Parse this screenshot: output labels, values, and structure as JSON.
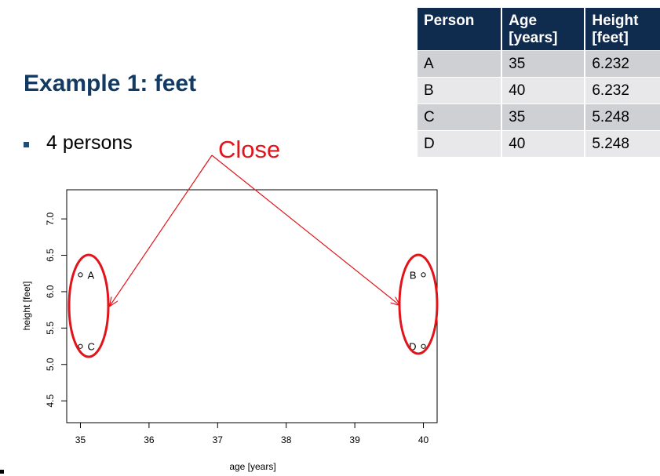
{
  "slide": {
    "title": "Example 1: feet",
    "bullet": "4 persons",
    "annotation": "Close"
  },
  "table": {
    "headers": [
      [
        "Person"
      ],
      [
        "Age",
        "[years]"
      ],
      [
        "Height",
        "[feet]"
      ]
    ],
    "rows": [
      [
        "A",
        "35",
        "6.232"
      ],
      [
        "B",
        "40",
        "6.232"
      ],
      [
        "C",
        "35",
        "5.248"
      ],
      [
        "D",
        "40",
        "5.248"
      ]
    ],
    "colors": {
      "header_bg": "#0f2b4d",
      "row_odd": "#cfd0d3",
      "row_even": "#e8e8ea"
    }
  },
  "chart_data": {
    "type": "scatter",
    "title": "",
    "xlabel": "age [years]",
    "ylabel": "height [feet]",
    "xlim": [
      34.8,
      40.2
    ],
    "ylim": [
      4.2,
      7.4
    ],
    "x_ticks": [
      35,
      36,
      37,
      38,
      39,
      40
    ],
    "x_tick_labels": [
      "35",
      "36",
      "37",
      "38",
      "39",
      "40"
    ],
    "y_ticks": [
      4.5,
      5.0,
      5.5,
      6.0,
      6.5,
      7.0
    ],
    "y_tick_labels": [
      "4.5",
      "5.0",
      "5.5",
      "6.0",
      "6.5",
      "7.0"
    ],
    "grid": false,
    "points": [
      {
        "label": "A",
        "x": 35,
        "y": 6.232
      },
      {
        "label": "B",
        "x": 40,
        "y": 6.232
      },
      {
        "label": "C",
        "x": 35,
        "y": 5.248
      },
      {
        "label": "D",
        "x": 40,
        "y": 5.248
      }
    ],
    "annotation_color": "#e2141b"
  }
}
